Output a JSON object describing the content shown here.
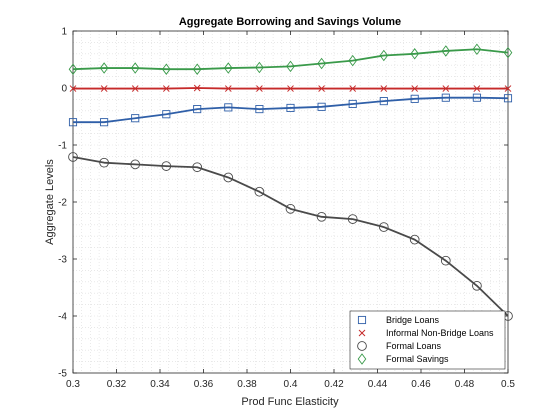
{
  "chart_data": {
    "type": "line",
    "title": "Aggregate Borrowing and Savings Volume",
    "xlabel": "Prod Func Elasticity",
    "ylabel": "Aggregate Levels",
    "xlim": [
      0.3,
      0.5
    ],
    "ylim": [
      -5,
      1
    ],
    "xticks": [
      "0.3",
      "0.32",
      "0.34",
      "0.36",
      "0.38",
      "0.4",
      "0.42",
      "0.44",
      "0.46",
      "0.48",
      "0.5"
    ],
    "yticks": [
      "1",
      "0",
      "-1",
      "-2",
      "-3",
      "-4",
      "-5"
    ],
    "grid": "minor dotted",
    "legend_position": "bottom-right",
    "x": [
      0.3,
      0.3143,
      0.3286,
      0.3429,
      0.3571,
      0.3714,
      0.3857,
      0.4,
      0.4143,
      0.4286,
      0.4429,
      0.4571,
      0.4714,
      0.4857,
      0.5
    ],
    "series": [
      {
        "name": "Bridge Loans",
        "color": "#2f5fa8",
        "marker": "square",
        "values": [
          -0.6,
          -0.6,
          -0.53,
          -0.46,
          -0.37,
          -0.34,
          -0.37,
          -0.35,
          -0.33,
          -0.28,
          -0.23,
          -0.19,
          -0.17,
          -0.17,
          -0.18
        ]
      },
      {
        "name": "Informal Non-Bridge Loans",
        "color": "#c62a2a",
        "marker": "x",
        "values": [
          -0.01,
          -0.01,
          -0.01,
          -0.01,
          0.0,
          -0.01,
          -0.01,
          -0.01,
          -0.01,
          -0.01,
          -0.01,
          -0.01,
          -0.01,
          -0.01,
          -0.01
        ]
      },
      {
        "name": "Formal Loans",
        "color": "#4a4a4a",
        "marker": "circle",
        "values": [
          -1.21,
          -1.31,
          -1.34,
          -1.37,
          -1.39,
          -1.57,
          -1.82,
          -2.12,
          -2.26,
          -2.3,
          -2.44,
          -2.66,
          -3.03,
          -3.47,
          -4.0
        ]
      },
      {
        "name": "Formal Savings",
        "color": "#3a9a4a",
        "marker": "diamond",
        "values": [
          0.33,
          0.35,
          0.35,
          0.33,
          0.33,
          0.35,
          0.36,
          0.38,
          0.43,
          0.48,
          0.57,
          0.6,
          0.65,
          0.68,
          0.62
        ]
      }
    ]
  }
}
